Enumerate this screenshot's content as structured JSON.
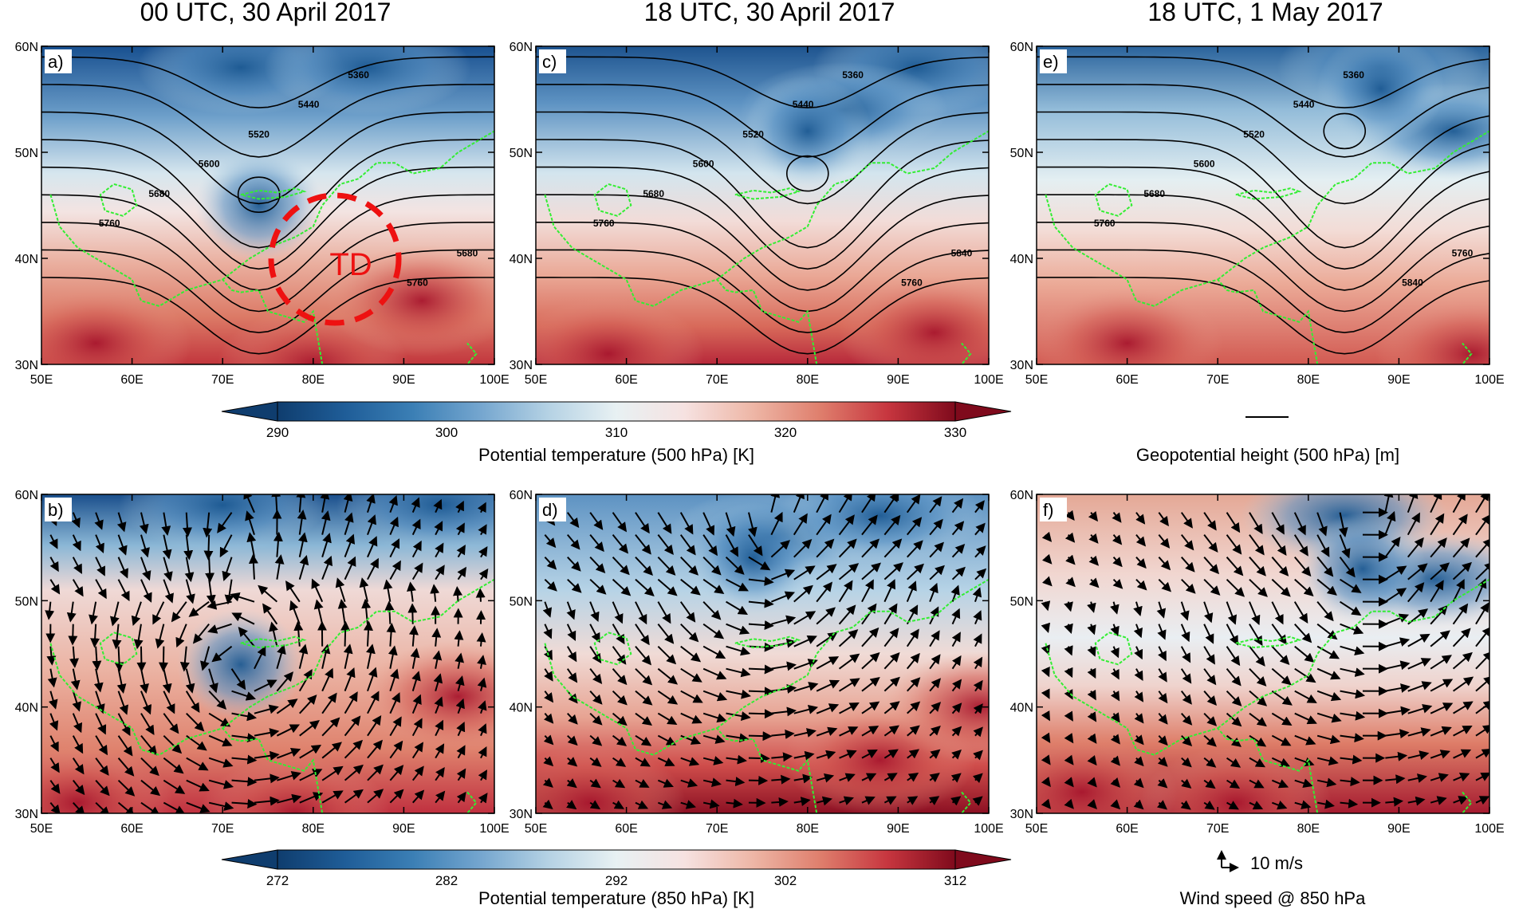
{
  "figure": {
    "column_titles": [
      "00 UTC, 30 April 2017",
      "18 UTC, 30 April 2017",
      "18 UTC, 1 May 2017"
    ],
    "x_ticks": [
      "50E",
      "60E",
      "70E",
      "80E",
      "90E",
      "100E"
    ],
    "y_ticks": [
      "60N",
      "50N",
      "40N",
      "30N"
    ],
    "cyclone_label": "TD",
    "top_colorbar": {
      "title": "Potential temperature (500 hPa) [K]",
      "ticks": [
        "290",
        "300",
        "310",
        "320",
        "330"
      ]
    },
    "bottom_colorbar": {
      "title": "Potential temperature (850 hPa) [K]",
      "ticks": [
        "272",
        "282",
        "292",
        "302",
        "312"
      ]
    },
    "contour_legend": "Geopotential height (500 hPa) [m]",
    "wind_legend": "Wind speed @ 850 hPa",
    "wind_reference": "10 m/s"
  },
  "chart_data": [
    {
      "id": "a",
      "panel_label": "a)",
      "type": "heatmap",
      "field": "Potential temperature (500 hPa) [K]",
      "contour_field": "Geopotential height (500 hPa) [m]",
      "x_range": [
        50,
        100
      ],
      "y_range": [
        30,
        60
      ],
      "contour_labels": [
        "5360",
        "5440",
        "5520",
        "5600",
        "5680",
        "5760",
        "5680",
        "5760"
      ],
      "trough_center": [
        74,
        46
      ],
      "cold_core": [
        74,
        45
      ]
    },
    {
      "id": "b",
      "panel_label": "b)",
      "type": "heatmap",
      "field": "Potential temperature (850 hPa) [K]",
      "vectors": "Wind speed @ 850 hPa",
      "x_range": [
        50,
        100
      ],
      "y_range": [
        30,
        60
      ],
      "cold_core": [
        72,
        44
      ]
    },
    {
      "id": "c",
      "panel_label": "c)",
      "type": "heatmap",
      "field": "Potential temperature (500 hPa) [K]",
      "contour_field": "Geopotential height (500 hPa) [m]",
      "x_range": [
        50,
        100
      ],
      "y_range": [
        30,
        60
      ],
      "contour_labels": [
        "5360",
        "5440",
        "5520",
        "5600",
        "5680",
        "5760",
        "5840",
        "5760"
      ],
      "trough_center": [
        80,
        48
      ],
      "cold_core": [
        80,
        52
      ]
    },
    {
      "id": "d",
      "panel_label": "d)",
      "type": "heatmap",
      "field": "Potential temperature (850 hPa) [K]",
      "vectors": "Wind speed @ 850 hPa",
      "x_range": [
        50,
        100
      ],
      "y_range": [
        30,
        60
      ],
      "cold_core": [
        74,
        54
      ]
    },
    {
      "id": "e",
      "panel_label": "e)",
      "type": "heatmap",
      "field": "Potential temperature (500 hPa) [K]",
      "contour_field": "Geopotential height (500 hPa) [m]",
      "x_range": [
        50,
        100
      ],
      "y_range": [
        30,
        60
      ],
      "contour_labels": [
        "5360",
        "5440",
        "5520",
        "5600",
        "5680",
        "5760",
        "5760",
        "5840"
      ],
      "trough_center": [
        84,
        52
      ],
      "cold_core": [
        88,
        56
      ]
    },
    {
      "id": "f",
      "panel_label": "f)",
      "type": "heatmap",
      "field": "Potential temperature (850 hPa) [K]",
      "vectors": "Wind speed @ 850 hPa",
      "x_range": [
        50,
        100
      ],
      "y_range": [
        30,
        60
      ],
      "cold_core": [
        86,
        53
      ]
    }
  ],
  "colors": {
    "scale": [
      "#0f3d6e",
      "#1f5d98",
      "#3b7fb5",
      "#75a6cf",
      "#b5d2e4",
      "#e8f1f3",
      "#f6e2e1",
      "#eeb7a7",
      "#df7f6d",
      "#c7363f",
      "#7f0a1c"
    ],
    "country_border": "#33ee33",
    "cyclone_marker": "#ee1111",
    "contour": "#000000"
  }
}
